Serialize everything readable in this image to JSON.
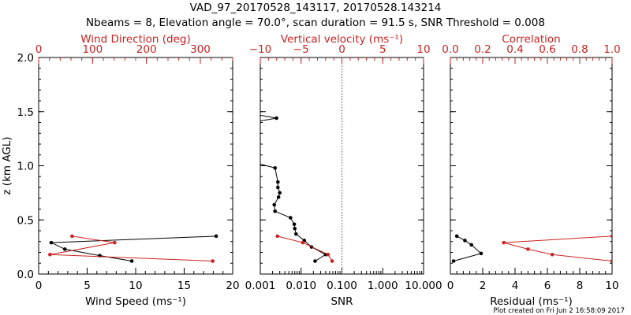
{
  "title": {
    "line1": "VAD_97_20170528_143117, 20170528.143214",
    "line2": "Nbeams = 8, Elevation angle = 70.0°, scan duration = 91.5 s, SNR Threshold = 0.008"
  },
  "footer": {
    "created": "Plot created on Fri Jun  2 16:58:09 2017"
  },
  "colors": {
    "primary": "#000000",
    "accent": "#cc2222",
    "guide": "#cc2222"
  },
  "chart_data": [
    {
      "type": "line",
      "name": "wind",
      "ylabel": "z (km AGL)",
      "ylim": [
        0,
        2.0
      ],
      "yticks": [
        0.0,
        0.5,
        1.0,
        1.5,
        2.0
      ],
      "yticklabels": [
        "0.0",
        "0.5",
        "1.0",
        "1.5",
        "2.0"
      ],
      "bottom_axis": {
        "label": "Wind Speed (ms⁻¹)",
        "xlim": [
          0,
          20
        ],
        "ticks": [
          0,
          5,
          10,
          15,
          20
        ],
        "ticklabels": [
          "0",
          "5",
          "10",
          "15",
          "20"
        ]
      },
      "top_axis": {
        "label": "Wind Direction (deg)",
        "xlim": [
          0,
          360
        ],
        "ticks": [
          0,
          100,
          200,
          300
        ],
        "ticklabels": [
          "0",
          "100",
          "200",
          "300"
        ]
      },
      "series": [
        {
          "name": "Wind Speed",
          "axis": "bottom",
          "color": "black",
          "points": [
            [
              18.3,
              0.35
            ],
            [
              1.3,
              0.29
            ],
            [
              2.7,
              0.23
            ],
            [
              6.3,
              0.17
            ],
            [
              9.6,
              0.12
            ]
          ]
        },
        {
          "name": "Wind Direction",
          "axis": "top",
          "color": "red",
          "points": [
            [
              62,
              0.35
            ],
            [
              141,
              0.29
            ],
            [
              21,
              0.18
            ],
            [
              323,
              0.12
            ]
          ]
        }
      ]
    },
    {
      "type": "line",
      "name": "snr_vertical_velocity",
      "ylim": [
        0,
        2.0
      ],
      "yticks": [
        0.0,
        0.5,
        1.0,
        1.5,
        2.0
      ],
      "bottom_axis": {
        "label": "SNR",
        "scale": "log",
        "xlim": [
          0.001,
          10
        ],
        "ticks": [
          0.001,
          0.01,
          0.1,
          1,
          10
        ],
        "ticklabels": [
          "0.001",
          "0.010",
          "0.100",
          "1.000",
          "10.000"
        ]
      },
      "top_axis": {
        "label": "Vertical velocity (ms⁻¹)",
        "xlim": [
          -10,
          10
        ],
        "ticks": [
          -10,
          -5,
          0,
          5,
          10
        ],
        "ticklabels": [
          "−10",
          "−5",
          "0",
          "5",
          "10"
        ],
        "zero_line": 0
      },
      "series": [
        {
          "name": "SNR",
          "axis": "bottom",
          "color": "black",
          "points": [
            [
              0.0009,
              1.47
            ],
            [
              0.0025,
              1.44
            ],
            [
              0.0009,
              1.41
            ],
            [
              0.0009,
              1.02
            ],
            [
              0.0023,
              0.98
            ],
            [
              0.0027,
              0.85
            ],
            [
              0.0027,
              0.8
            ],
            [
              0.003,
              0.75
            ],
            [
              0.0028,
              0.71
            ],
            [
              0.0022,
              0.64
            ],
            [
              0.0023,
              0.58
            ],
            [
              0.0055,
              0.52
            ],
            [
              0.0068,
              0.46
            ],
            [
              0.007,
              0.42
            ],
            [
              0.0075,
              0.37
            ],
            [
              0.012,
              0.31
            ],
            [
              0.018,
              0.25
            ],
            [
              0.04,
              0.18
            ],
            [
              0.022,
              0.12
            ]
          ]
        },
        {
          "name": "Vertical velocity",
          "axis": "top",
          "color": "red",
          "points": [
            [
              -7.9,
              0.35
            ],
            [
              -4.8,
              0.29
            ],
            [
              -1.7,
              0.18
            ],
            [
              -1.2,
              0.12
            ]
          ]
        }
      ]
    },
    {
      "type": "line",
      "name": "residual_correlation",
      "ylim": [
        0,
        2.0
      ],
      "yticks": [
        0.0,
        0.5,
        1.0,
        1.5,
        2.0
      ],
      "bottom_axis": {
        "label": "Residual (ms⁻¹)",
        "xlim": [
          0,
          10
        ],
        "ticks": [
          0,
          2,
          4,
          6,
          8,
          10
        ],
        "ticklabels": [
          "0",
          "2",
          "4",
          "6",
          "8",
          "10"
        ]
      },
      "top_axis": {
        "label": "Correlation",
        "xlim": [
          0,
          1
        ],
        "ticks": [
          0,
          0.2,
          0.4,
          0.6,
          0.8,
          1.0
        ],
        "ticklabels": [
          "0.0",
          "0.2",
          "0.4",
          "0.6",
          "0.8",
          "1.0"
        ]
      },
      "series": [
        {
          "name": "Residual",
          "axis": "bottom",
          "color": "black",
          "points": [
            [
              0.4,
              0.35
            ],
            [
              0.9,
              0.31
            ],
            [
              1.3,
              0.27
            ],
            [
              1.9,
              0.19
            ],
            [
              0.2,
              0.12
            ]
          ]
        },
        {
          "name": "Correlation",
          "axis": "top",
          "color": "red",
          "points": [
            [
              1.0,
              0.35
            ],
            [
              0.33,
              0.29
            ],
            [
              0.48,
              0.23
            ],
            [
              0.63,
              0.18
            ],
            [
              1.0,
              0.12
            ]
          ]
        }
      ]
    }
  ]
}
